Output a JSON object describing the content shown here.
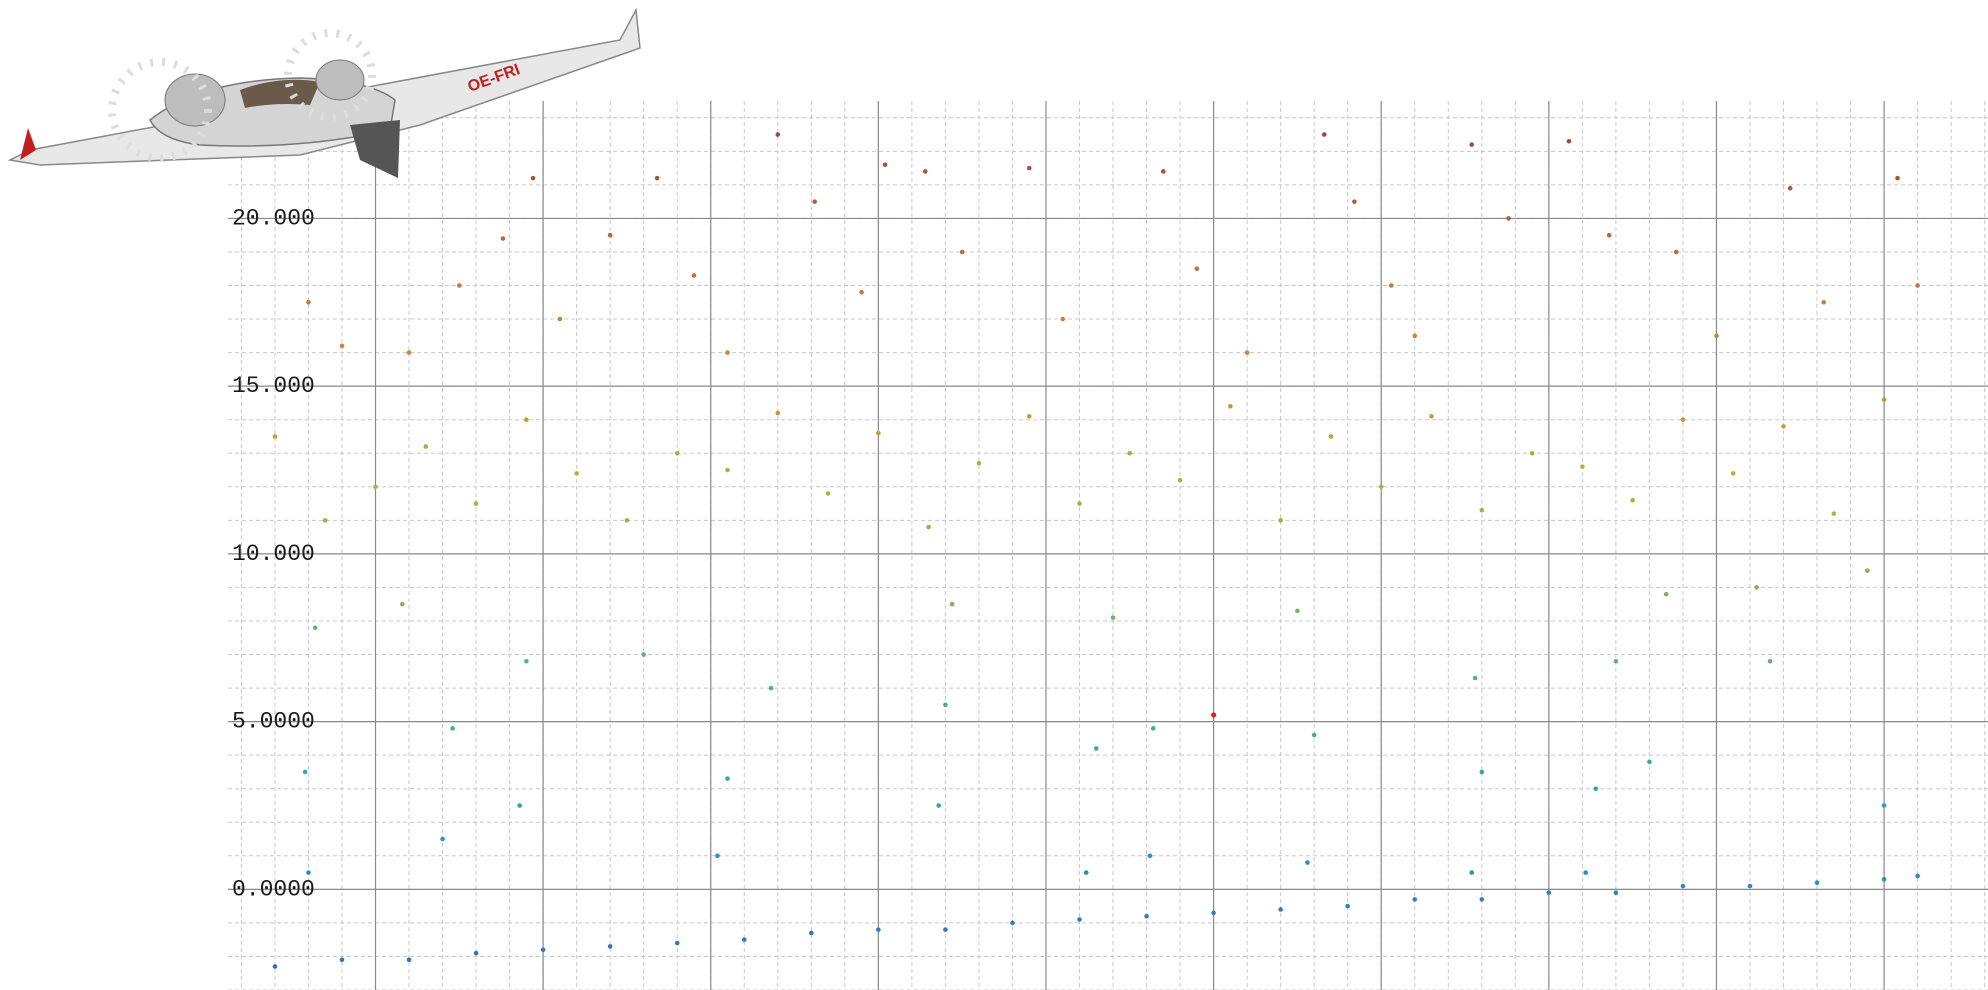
{
  "aircraft_label": "OE-FRI",
  "chart_data": {
    "type": "scatter",
    "xlim": [
      -4.4,
      48.1
    ],
    "xticks": [
      0,
      5,
      10,
      15,
      20,
      25,
      30,
      35,
      40,
      45
    ],
    "ylim": [
      -3,
      23.5
    ],
    "yticks": [
      {
        "value": 0,
        "label": "0.0000"
      },
      {
        "value": 5,
        "label": "5.0000"
      },
      {
        "value": 10,
        "label": "10.000"
      },
      {
        "value": 15,
        "label": "15.000"
      },
      {
        "value": 20,
        "label": "20.000"
      }
    ],
    "grid": true,
    "minor_grid": true,
    "minor_step": 1,
    "colormap": [
      "#3566c6",
      "#2a9fb8",
      "#5fb86a",
      "#b5b03e",
      "#cd7b3a",
      "#9c4a3a"
    ],
    "colormap_range": [
      -3,
      22.5
    ],
    "series": [
      {
        "x": [
          -3,
          -1,
          1,
          3,
          5,
          7,
          9,
          11,
          13,
          15,
          17,
          19,
          21,
          23,
          25,
          27,
          29,
          31,
          33,
          35,
          37,
          39,
          41,
          43,
          45,
          46,
          -2.0,
          -2.1,
          -1.8,
          2.0,
          2.3,
          4.3,
          4.5,
          0.8,
          10.2,
          10.5,
          11.8,
          8.0,
          16.8,
          17.0,
          17.2,
          21.2,
          21.5,
          23.1,
          23.2,
          22.0,
          27.8,
          28.0,
          27.5,
          32.7,
          33.0,
          32.8,
          36.1,
          36.4,
          37.0,
          38.0,
          38.5,
          41.6,
          41.2,
          45.0,
          44.5,
          -3,
          -1.5,
          0,
          1.5,
          3,
          4.5,
          6,
          7.5,
          9,
          10.5,
          12,
          13.5,
          15,
          16.5,
          18,
          19.5,
          21,
          22.5,
          24,
          25.5,
          27,
          28.5,
          30,
          31.5,
          33,
          34.5,
          36,
          37.5,
          39,
          40.5,
          42,
          43.5,
          45,
          -2,
          -1,
          1,
          2.5,
          3.8,
          4.7,
          5.5,
          7,
          8.4,
          9.5,
          10.5,
          12,
          13.1,
          14.5,
          15.2,
          16.4,
          17.5,
          19.5,
          20.5,
          23.5,
          24.5,
          26,
          28.3,
          29.2,
          30.3,
          31,
          32.7,
          33.8,
          35.6,
          36.8,
          38.8,
          40,
          42.2,
          43.2,
          45.4,
          46
        ],
        "values": [
          -2.3,
          -2.1,
          -2.1,
          -1.9,
          -1.8,
          -1.7,
          -1.6,
          -1.5,
          -1.3,
          -1.2,
          -1.2,
          -1.0,
          -0.9,
          -0.8,
          -0.7,
          -0.6,
          -0.5,
          -0.3,
          -0.3,
          -0.1,
          -0.1,
          0.1,
          0.1,
          0.2,
          0.3,
          0.4,
          0.5,
          3.5,
          7.8,
          1.5,
          4.8,
          2.5,
          6.8,
          8.5,
          1.0,
          3.3,
          6.0,
          7.0,
          2.5,
          5.5,
          8.5,
          0.5,
          4.2,
          1.0,
          4.8,
          8.1,
          0.8,
          4.6,
          8.3,
          0.5,
          3.5,
          6.3,
          0.5,
          3.0,
          6.8,
          3.8,
          8.8,
          6.8,
          9.0,
          2.5,
          9.5,
          13.5,
          11,
          12,
          13.2,
          11.5,
          14,
          12.4,
          11,
          13,
          12.5,
          14.2,
          11.8,
          13.6,
          10.8,
          12.7,
          14.1,
          11.5,
          13,
          12.2,
          14.4,
          11,
          13.5,
          12,
          14.1,
          11.3,
          13,
          12.6,
          11.6,
          14,
          12.4,
          13.8,
          11.2,
          14.6,
          17.5,
          16.2,
          16,
          18,
          19.4,
          21.2,
          17,
          19.5,
          21.2,
          18.3,
          16,
          22.5,
          20.5,
          17.8,
          21.6,
          21.4,
          19,
          21.5,
          17,
          21.4,
          18.5,
          16,
          22.5,
          20.5,
          18,
          16.5,
          22.2,
          20,
          22.3,
          19.5,
          19,
          16.5,
          20.9,
          17.5,
          21.2,
          18
        ]
      },
      {
        "color": "#e02020",
        "x": [
          25.0
        ],
        "values": [
          5.2
        ]
      }
    ]
  }
}
